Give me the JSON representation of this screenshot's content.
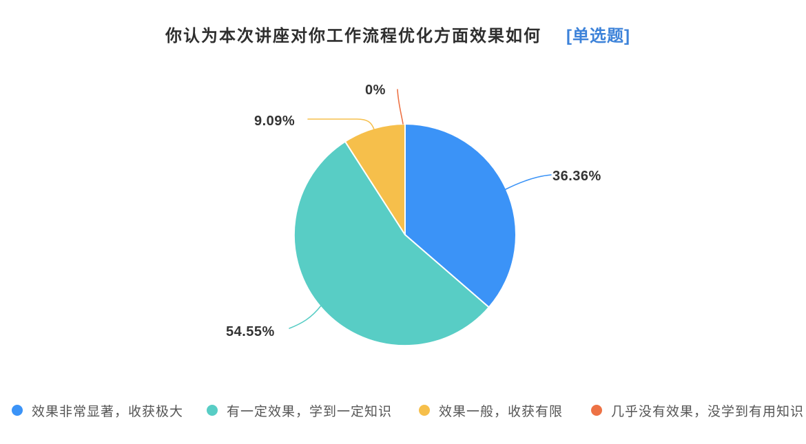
{
  "chart_data": {
    "type": "pie",
    "title": "你认为本次讲座对你工作流程优化方面效果如何",
    "question_type_tag": "[单选题]",
    "direction": "clockwise",
    "start_angle_deg": 0,
    "legend_position": "bottom",
    "series": [
      {
        "label": "效果非常显著，收获极大",
        "value_pct": 36.36,
        "display": "36.36%",
        "color": "#3b93f7"
      },
      {
        "label": "有一定效果，学到一定知识",
        "value_pct": 54.55,
        "display": "54.55%",
        "color": "#58cdc5"
      },
      {
        "label": "效果一般，收获有限",
        "value_pct": 9.09,
        "display": "9.09%",
        "color": "#f6bf4b"
      },
      {
        "label": "几乎没有效果，没学到有用知识",
        "value_pct": 0,
        "display": "0%",
        "color": "#ed7245"
      }
    ],
    "colors": {
      "title_text": "#2e2e2e",
      "tag_text": "#3c82d9",
      "percent_label_text": "#333333",
      "legend_text": "#555555",
      "background": "#ffffff"
    }
  }
}
